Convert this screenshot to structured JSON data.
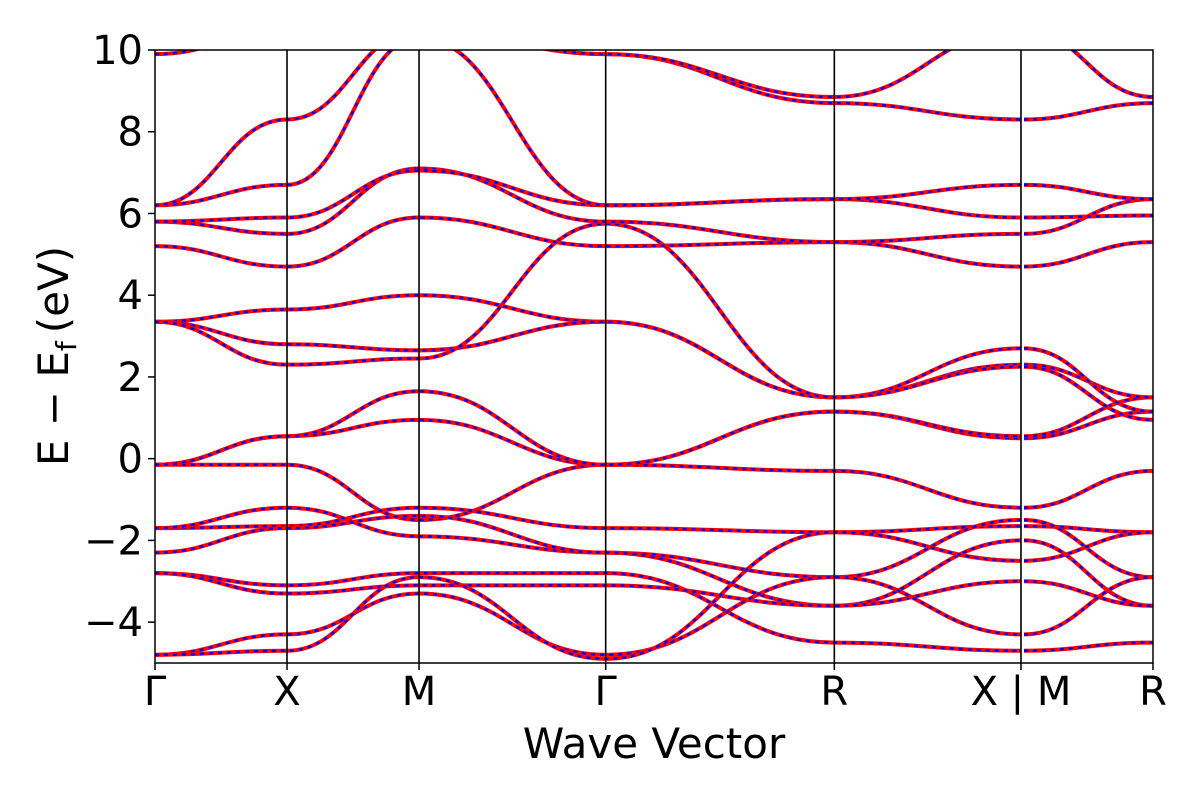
{
  "chart_data": {
    "type": "line",
    "title": "",
    "xlabel": "Wave Vector",
    "ylabel": "E − E",
    "ylabel_sub": "f",
    "ylabel_unit": "(eV)",
    "ylim": [
      -5,
      10
    ],
    "yticks": [
      -4,
      -2,
      0,
      2,
      4,
      6,
      8,
      10
    ],
    "ytick_labels": [
      "−4",
      "−2",
      "0",
      "2",
      "4",
      "6",
      "8",
      "10"
    ],
    "x_ticks": [
      {
        "k": 0.0,
        "label": "Γ"
      },
      {
        "k": 1.0,
        "label": "X"
      },
      {
        "k": 2.0,
        "label": "M"
      },
      {
        "k": 3.414,
        "label": "Γ"
      },
      {
        "k": 5.146,
        "label": "R"
      },
      {
        "k": 6.56,
        "label": "X | M"
      },
      {
        "k": 7.56,
        "label": "R"
      }
    ],
    "path_break_k": 6.56,
    "grid": false,
    "legend": "none",
    "colors": {
      "series_a": "#ff0000",
      "series_b": "#0000ff",
      "kline": "#000000"
    },
    "series": [
      {
        "style": "red solid with blue dashed overlay",
        "bands": [
          [
            [
              0,
              -0.15
            ],
            [
              1,
              -0.15
            ],
            [
              2,
              -1.5
            ],
            [
              3.414,
              -0.15
            ],
            [
              5.146,
              -0.3
            ],
            [
              6.56,
              -1.2
            ],
            [
              7.56,
              -0.3
            ]
          ],
          [
            [
              0,
              -0.15
            ],
            [
              1,
              0.55
            ],
            [
              2,
              0.95
            ],
            [
              3.414,
              -0.15
            ],
            [
              5.146,
              1.15
            ],
            [
              6.56,
              0.5
            ],
            [
              7.56,
              1.15
            ]
          ],
          [
            [
              0,
              -0.15
            ],
            [
              1,
              0.55
            ],
            [
              2,
              1.65
            ],
            [
              3.414,
              -0.15
            ],
            [
              5.146,
              1.15
            ],
            [
              6.56,
              0.55
            ],
            [
              7.56,
              1.5
            ]
          ],
          [
            [
              0,
              -1.7
            ],
            [
              1,
              -1.65
            ],
            [
              2,
              -1.2
            ],
            [
              3.414,
              -1.7
            ],
            [
              5.146,
              -1.8
            ],
            [
              6.56,
              -1.65
            ],
            [
              7.56,
              -1.8
            ]
          ],
          [
            [
              0,
              -1.7
            ],
            [
              1,
              -1.2
            ],
            [
              2,
              -1.9
            ],
            [
              3.414,
              -2.3
            ],
            [
              5.146,
              -2.9
            ],
            [
              6.56,
              -1.5
            ],
            [
              7.56,
              -2.9
            ]
          ],
          [
            [
              0,
              -2.3
            ],
            [
              1,
              -1.7
            ],
            [
              2,
              -1.4
            ],
            [
              3.414,
              -2.3
            ],
            [
              5.146,
              -3.6
            ],
            [
              6.56,
              -2.0
            ],
            [
              7.56,
              -3.6
            ]
          ],
          [
            [
              0,
              -2.8
            ],
            [
              1,
              -3.1
            ],
            [
              2,
              -2.8
            ],
            [
              3.414,
              -2.8
            ],
            [
              5.146,
              -4.5
            ],
            [
              6.56,
              -4.7
            ],
            [
              7.56,
              -4.5
            ]
          ],
          [
            [
              0,
              -2.8
            ],
            [
              1,
              -3.3
            ],
            [
              2,
              -3.1
            ],
            [
              3.414,
              -3.1
            ],
            [
              5.146,
              -3.6
            ],
            [
              6.56,
              -3.0
            ],
            [
              7.56,
              -3.6
            ]
          ],
          [
            [
              0,
              -4.8
            ],
            [
              1,
              -4.3
            ],
            [
              2,
              -3.3
            ],
            [
              3.414,
              -4.8
            ],
            [
              5.146,
              -2.9
            ],
            [
              6.56,
              -4.3
            ],
            [
              7.56,
              -2.9
            ]
          ],
          [
            [
              0,
              -4.8
            ],
            [
              1,
              -4.7
            ],
            [
              2,
              -2.9
            ],
            [
              3.414,
              -4.9
            ],
            [
              5.146,
              -1.8
            ],
            [
              6.56,
              -2.5
            ],
            [
              7.56,
              -1.8
            ]
          ],
          [
            [
              0,
              3.35
            ],
            [
              1,
              3.65
            ],
            [
              2,
              4.0
            ],
            [
              3.414,
              3.35
            ],
            [
              5.146,
              1.5
            ],
            [
              6.56,
              2.3
            ],
            [
              7.56,
              1.5
            ]
          ],
          [
            [
              0,
              3.35
            ],
            [
              1,
              2.8
            ],
            [
              2,
              2.65
            ],
            [
              3.414,
              3.35
            ],
            [
              5.146,
              1.5
            ],
            [
              6.56,
              2.7
            ],
            [
              7.56,
              1.15
            ]
          ],
          [
            [
              0,
              3.35
            ],
            [
              1,
              2.3
            ],
            [
              2,
              2.45
            ],
            [
              3.414,
              5.75
            ],
            [
              5.146,
              1.5
            ],
            [
              6.56,
              2.25
            ],
            [
              7.56,
              0.95
            ]
          ],
          [
            [
              0,
              5.2
            ],
            [
              1,
              4.7
            ],
            [
              2,
              5.9
            ],
            [
              3.414,
              5.2
            ],
            [
              5.146,
              5.3
            ],
            [
              6.56,
              4.7
            ],
            [
              7.56,
              5.3
            ]
          ],
          [
            [
              0,
              5.8
            ],
            [
              1,
              5.5
            ],
            [
              2,
              7.1
            ],
            [
              3.414,
              5.8
            ],
            [
              5.146,
              5.3
            ],
            [
              6.56,
              5.5
            ],
            [
              7.56,
              6.35
            ]
          ],
          [
            [
              0,
              5.8
            ],
            [
              1,
              5.9
            ],
            [
              2,
              7.05
            ],
            [
              3.414,
              6.2
            ],
            [
              5.146,
              6.35
            ],
            [
              6.56,
              5.9
            ],
            [
              7.56,
              5.95
            ]
          ],
          [
            [
              0,
              6.2
            ],
            [
              1,
              6.7
            ],
            [
              2,
              10.3
            ],
            [
              3.414,
              6.2
            ],
            [
              5.146,
              6.35
            ],
            [
              6.56,
              6.7
            ],
            [
              7.56,
              6.35
            ]
          ],
          [
            [
              0,
              6.2
            ],
            [
              1,
              8.3
            ],
            [
              2,
              10.5
            ],
            [
              3.414,
              9.9
            ],
            [
              5.146,
              8.7
            ],
            [
              6.56,
              8.3
            ],
            [
              7.56,
              8.7
            ]
          ],
          [
            [
              0,
              9.9
            ],
            [
              1,
              10.5
            ],
            [
              2,
              10.6
            ],
            [
              3.414,
              9.9
            ],
            [
              5.146,
              8.85
            ],
            [
              6.56,
              10.5
            ],
            [
              7.56,
              8.85
            ]
          ]
        ]
      }
    ]
  }
}
